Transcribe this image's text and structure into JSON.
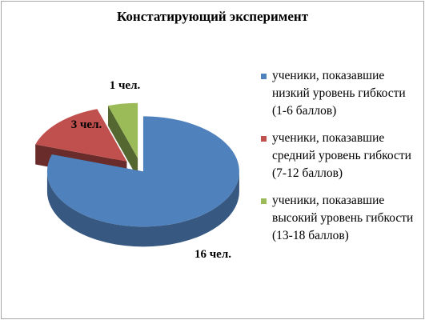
{
  "chart_data": {
    "type": "pie",
    "title": "Констатирующий эксперимент",
    "labels": [
      "ученики, показавшие низкий уровень гибкости (1-6 баллов)",
      "ученики, показавшие средний уровень гибкости (7-12 баллов)",
      "ученики, показавшие высокий уровень гибкости (13-18 баллов)"
    ],
    "values": [
      16,
      3,
      1
    ],
    "data_labels": [
      "16 чел.",
      "3 чел.",
      "1 чел."
    ],
    "colors": [
      "#4f81bd",
      "#c0504d",
      "#9bbb59"
    ],
    "legend_position": "right",
    "three_d": true,
    "exploded": true
  }
}
